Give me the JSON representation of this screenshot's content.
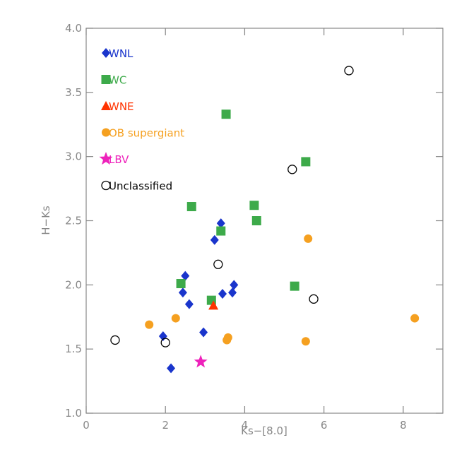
{
  "chart_data": {
    "type": "scatter",
    "x_label": "Ks−[8.0]",
    "y_label": "H−Ks",
    "xlim": [
      0,
      9
    ],
    "xticks": [
      0,
      2,
      4,
      6,
      8
    ],
    "ylim": [
      1,
      4
    ],
    "yticks": [
      {
        "value": 1,
        "label": "1.0"
      },
      1.5,
      {
        "value": 2,
        "label": "2.0"
      },
      2.5,
      {
        "value": 3,
        "label": "3.0"
      },
      3.5,
      {
        "value": 4,
        "label": "4.0"
      }
    ],
    "series": [
      {
        "name": "WNL",
        "color": "#1a35cc",
        "marker": "diamond",
        "x": [
          3.4,
          3.24,
          2.5,
          2.44,
          2.6,
          3.44,
          3.69,
          3.73,
          2.96,
          1.94,
          2.14
        ],
        "values": [
          2.48,
          2.35,
          2.07,
          1.94,
          1.85,
          1.93,
          1.94,
          2.0,
          1.63,
          1.6,
          1.35
        ]
      },
      {
        "name": "WC",
        "color": "#3daa4a",
        "marker": "square",
        "x": [
          3.53,
          5.54,
          2.66,
          4.24,
          4.3,
          3.4,
          2.39,
          3.16,
          5.26
        ],
        "values": [
          3.33,
          2.96,
          2.61,
          2.62,
          2.5,
          2.42,
          2.01,
          1.88,
          1.99
        ]
      },
      {
        "name": "WNE",
        "color": "#ff3300",
        "marker": "triangle",
        "x": [
          3.21
        ],
        "values": [
          1.84
        ]
      },
      {
        "name": "OB supergiant",
        "color": "#f5a020",
        "marker": "circle",
        "x": [
          5.6,
          8.29,
          1.59,
          2.26,
          3.58,
          3.55,
          5.54
        ],
        "values": [
          2.36,
          1.74,
          1.69,
          1.74,
          1.59,
          1.57,
          1.56
        ]
      },
      {
        "name": "LBV",
        "color": "#ee22bb",
        "marker": "star",
        "x": [
          2.89
        ],
        "values": [
          1.4
        ]
      },
      {
        "name": "Unclassified",
        "color": "#000000",
        "marker": "open-circle",
        "x": [
          6.63,
          5.2,
          3.33,
          5.74,
          0.73,
          2.0
        ],
        "values": [
          3.67,
          2.9,
          2.16,
          1.89,
          1.57,
          1.55
        ]
      }
    ]
  }
}
